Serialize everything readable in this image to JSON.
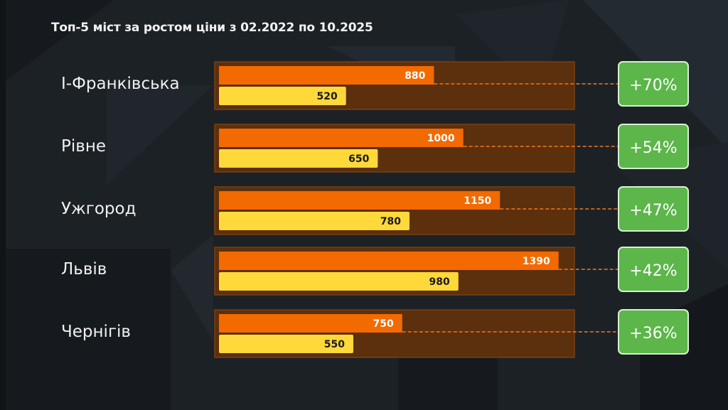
{
  "title": "Топ-5 міст за ростом ціни з 02.2022 по 10.2025",
  "colors": {
    "background": "#1c2126",
    "track": "#5c2f0d",
    "series_2025": "#f26a00",
    "series_2022": "#ffd83a",
    "badge": "#5cb64a",
    "connector": "#f07a1a"
  },
  "chart_data": {
    "type": "bar",
    "orientation": "horizontal",
    "title": "Топ-5 міст за ростом ціни з 02.2022 по 10.2025",
    "categories": [
      "І-Франківська",
      "Рівне",
      "Ужгород",
      "Львів",
      "Чернігів"
    ],
    "series": [
      {
        "values": [
          880,
          1000,
          1150,
          1390,
          750
        ],
        "color": "#f26a00"
      },
      {
        "values": [
          520,
          650,
          780,
          980,
          550
        ],
        "color": "#ffd83a"
      }
    ],
    "growth_labels": [
      "+70%",
      "+54%",
      "+47%",
      "+42%",
      "+36%"
    ],
    "xlim": [
      0,
      1420
    ],
    "grid": false,
    "legend": "none"
  }
}
